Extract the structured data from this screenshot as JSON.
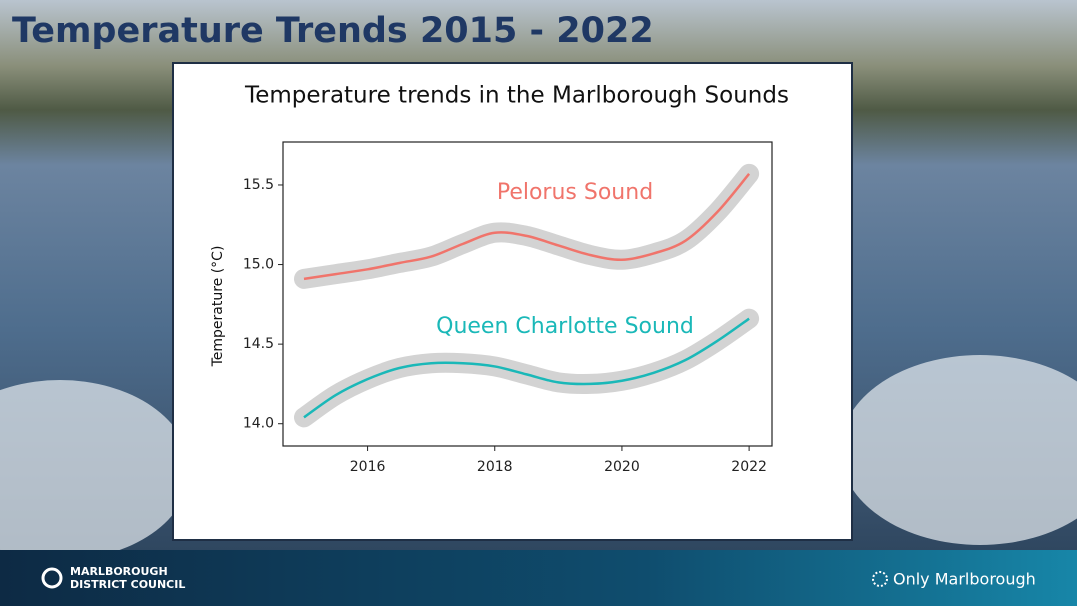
{
  "slide": {
    "title": "Temperature Trends 2015 - 2022",
    "footer": {
      "logo_line1": "MARLBOROUGH",
      "logo_line2": "DISTRICT COUNCIL",
      "brand": "Only Marlborough"
    }
  },
  "chart_data": {
    "type": "line",
    "title": "Temperature trends in the Marlborough Sounds",
    "y_label": "Temperature (°C)",
    "x": [
      2015,
      2015.5,
      2016,
      2016.5,
      2017,
      2017.5,
      2018,
      2018.5,
      2019,
      2019.5,
      2020,
      2020.5,
      2021,
      2021.5,
      2022
    ],
    "series": [
      {
        "name": "Pelorus Sound",
        "color": "#f0746b",
        "values": [
          14.91,
          14.94,
          14.97,
          15.01,
          15.05,
          15.13,
          15.2,
          15.18,
          15.12,
          15.06,
          15.03,
          15.07,
          15.15,
          15.33,
          15.57
        ]
      },
      {
        "name": "Queen Charlotte Sound",
        "color": "#1ab8b8",
        "values": [
          14.04,
          14.18,
          14.28,
          14.35,
          14.38,
          14.38,
          14.36,
          14.31,
          14.26,
          14.25,
          14.27,
          14.32,
          14.4,
          14.52,
          14.66
        ]
      }
    ],
    "xlim": [
      2014.67,
      2022.36
    ],
    "ylim": [
      13.86,
      15.77
    ],
    "xticks": [
      2016,
      2018,
      2020,
      2022
    ],
    "yticks": [
      {
        "value": 14,
        "label": "14.0"
      },
      14.5,
      {
        "value": 15,
        "label": "15.0"
      },
      15.5
    ],
    "band_color": "#d3d3d3"
  }
}
